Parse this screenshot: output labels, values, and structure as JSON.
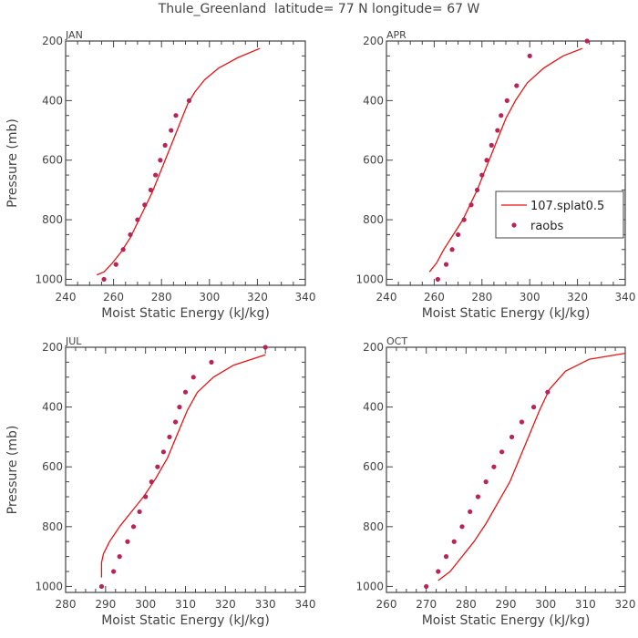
{
  "figure": {
    "title": "Thule_Greenland  latitude= 77 N longitude= 67 W"
  },
  "chart_data": [
    {
      "type": "line",
      "panel": "JAN",
      "xlabel": "Moist Static Energy (kJ/kg)",
      "ylabel": "Pressure (mb)",
      "xlim": [
        240,
        340
      ],
      "ylim": [
        1020,
        200
      ],
      "xticks": [
        240,
        260,
        280,
        300,
        320,
        340
      ],
      "yticks": [
        200,
        400,
        600,
        800,
        1000
      ],
      "grid": false,
      "series": [
        {
          "name": "107.splat0.5",
          "kind": "line",
          "color": "#ee1111",
          "x": [
            253,
            256,
            259,
            263,
            267,
            270,
            273,
            276,
            279,
            282,
            285,
            288,
            291,
            294,
            298,
            304,
            312,
            321
          ],
          "y": [
            985,
            975,
            950,
            910,
            860,
            810,
            760,
            710,
            650,
            590,
            530,
            470,
            410,
            370,
            330,
            290,
            255,
            225
          ]
        },
        {
          "name": "raobs",
          "kind": "scatter",
          "color": "#bb2255",
          "x": [
            256,
            261,
            264,
            267,
            270,
            273,
            275.5,
            277.5,
            279.5,
            281.5,
            284,
            286,
            291.5
          ],
          "y": [
            1000,
            950,
            900,
            850,
            800,
            750,
            700,
            650,
            600,
            550,
            500,
            450,
            400
          ]
        }
      ]
    },
    {
      "type": "line",
      "panel": "APR",
      "xlabel": "Moist Static Energy (kJ/kg)",
      "ylabel": "",
      "xlim": [
        240,
        340
      ],
      "ylim": [
        1020,
        200
      ],
      "xticks": [
        240,
        260,
        280,
        300,
        320,
        340
      ],
      "yticks": [
        200,
        400,
        600,
        800,
        1000
      ],
      "grid": false,
      "legend": {
        "placement": "center-right",
        "entries": [
          "107.splat0.5",
          "raobs"
        ]
      },
      "series": [
        {
          "name": "107.splat0.5",
          "kind": "line",
          "color": "#ee1111",
          "x": [
            258,
            261,
            264,
            268,
            272,
            275,
            278,
            281,
            284,
            287,
            290,
            294,
            299,
            306,
            314,
            322
          ],
          "y": [
            975,
            945,
            900,
            850,
            800,
            750,
            700,
            640,
            580,
            520,
            460,
            400,
            340,
            290,
            250,
            225
          ]
        },
        {
          "name": "raobs",
          "kind": "scatter",
          "color": "#bb2255",
          "x": [
            261.5,
            265,
            267.5,
            270,
            272.5,
            275.5,
            278,
            280,
            282,
            284,
            286.5,
            288,
            290.5,
            294.5,
            300,
            324
          ],
          "y": [
            1000,
            950,
            900,
            850,
            800,
            750,
            700,
            650,
            600,
            550,
            500,
            450,
            400,
            350,
            250,
            200
          ]
        }
      ]
    },
    {
      "type": "line",
      "panel": "JUL",
      "xlabel": "Moist Static Energy (kJ/kg)",
      "ylabel": "Pressure (mb)",
      "xlim": [
        280,
        340
      ],
      "ylim": [
        1020,
        200
      ],
      "xticks": [
        280,
        290,
        300,
        310,
        320,
        330,
        340
      ],
      "yticks": [
        200,
        400,
        600,
        800,
        1000
      ],
      "grid": false,
      "series": [
        {
          "name": "107.splat0.5",
          "kind": "line",
          "color": "#ee1111",
          "x": [
            289,
            289,
            289.5,
            291,
            293.5,
            296.5,
            299.5,
            302.5,
            305.5,
            308,
            310.5,
            313,
            317,
            322,
            330
          ],
          "y": [
            970,
            920,
            890,
            850,
            800,
            750,
            700,
            640,
            570,
            490,
            410,
            350,
            300,
            260,
            225
          ]
        },
        {
          "name": "raobs",
          "kind": "scatter",
          "color": "#bb2255",
          "x": [
            289,
            292,
            293.5,
            295.5,
            297,
            298.5,
            300,
            301.5,
            303,
            304.5,
            306,
            307.5,
            308.5,
            310,
            312,
            316.5,
            330
          ],
          "y": [
            1000,
            950,
            900,
            850,
            800,
            750,
            700,
            650,
            600,
            550,
            500,
            450,
            400,
            350,
            300,
            250,
            200
          ]
        }
      ]
    },
    {
      "type": "line",
      "panel": "OCT",
      "xlabel": "Moist Static Energy (kJ/kg)",
      "ylabel": "",
      "xlim": [
        260,
        320
      ],
      "ylim": [
        1020,
        200
      ],
      "xticks": [
        260,
        270,
        280,
        290,
        300,
        310,
        320
      ],
      "yticks": [
        200,
        400,
        600,
        800,
        1000
      ],
      "grid": false,
      "series": [
        {
          "name": "107.splat0.5",
          "kind": "line",
          "color": "#ee1111",
          "x": [
            273,
            276,
            279,
            282,
            285,
            288,
            291,
            293.5,
            296,
            298.5,
            301,
            305,
            311,
            320
          ],
          "y": [
            980,
            950,
            900,
            850,
            790,
            720,
            650,
            570,
            490,
            410,
            340,
            280,
            240,
            220
          ]
        },
        {
          "name": "raobs",
          "kind": "scatter",
          "color": "#bb2255",
          "x": [
            270,
            273,
            275,
            277,
            279,
            281,
            283,
            285,
            287,
            289,
            291.5,
            294,
            297,
            300.5
          ],
          "y": [
            1000,
            950,
            900,
            850,
            800,
            750,
            700,
            650,
            600,
            550,
            500,
            450,
            400,
            350
          ]
        }
      ]
    }
  ]
}
